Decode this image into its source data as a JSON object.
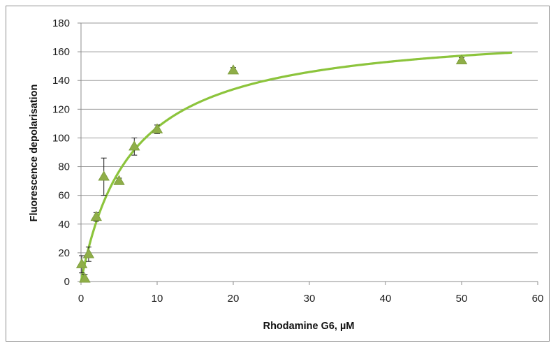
{
  "chart_data": {
    "type": "scatter",
    "title": "",
    "xlabel": "Rhodamine G6, µM",
    "ylabel": "Fluorescence depolarisation",
    "xlim": [
      0,
      60
    ],
    "ylim": [
      0,
      180
    ],
    "x_ticks": [
      "0",
      "10",
      "20",
      "30",
      "40",
      "50",
      "60"
    ],
    "y_ticks": [
      "0",
      "20",
      "40",
      "60",
      "80",
      "100",
      "120",
      "140",
      "160",
      "180"
    ],
    "grid": "horizontal",
    "legend": "none",
    "series": [
      {
        "points": [
          {
            "x": 0.1,
            "y": 12,
            "err": 6
          },
          {
            "x": 0.5,
            "y": 2,
            "err": 3
          },
          {
            "x": 1,
            "y": 19,
            "err": 5
          },
          {
            "x": 2,
            "y": 45,
            "err": 3
          },
          {
            "x": 3,
            "y": 73,
            "err": 13
          },
          {
            "x": 5,
            "y": 70,
            "err": 2
          },
          {
            "x": 7,
            "y": 94,
            "err": 6
          },
          {
            "x": 10,
            "y": 106,
            "err": 3
          },
          {
            "x": 20,
            "y": 147,
            "err": 2
          },
          {
            "x": 50,
            "y": 154,
            "err": 2
          }
        ],
        "marker": "triangle",
        "color": "#8fae48"
      }
    ],
    "fit_curve": {
      "model": "hyperbolic",
      "vmax": 178,
      "kd": 6.6,
      "x_range": [
        0,
        56.5
      ],
      "color": "#8cc43c"
    }
  }
}
